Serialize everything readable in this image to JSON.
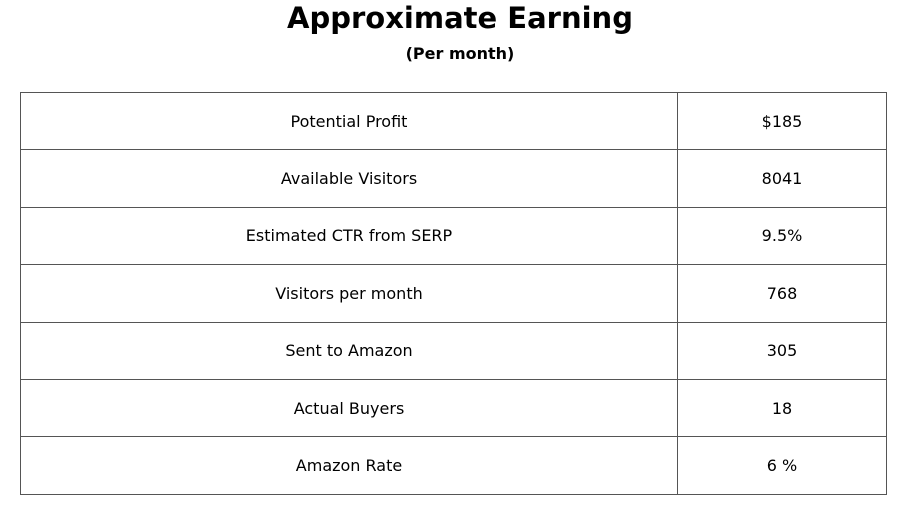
{
  "header": {
    "title": "Approximate Earning",
    "subtitle": "(Per month)"
  },
  "table": {
    "rows": [
      [
        "Potential Profit",
        "$185"
      ],
      [
        "Available Visitors",
        "8041"
      ],
      [
        "Estimated CTR from SERP",
        "9.5%"
      ],
      [
        "Visitors per month",
        "768"
      ],
      [
        "Sent to Amazon",
        "305"
      ],
      [
        "Actual Buyers",
        "18"
      ],
      [
        "Amazon Rate",
        "6 %"
      ]
    ]
  }
}
